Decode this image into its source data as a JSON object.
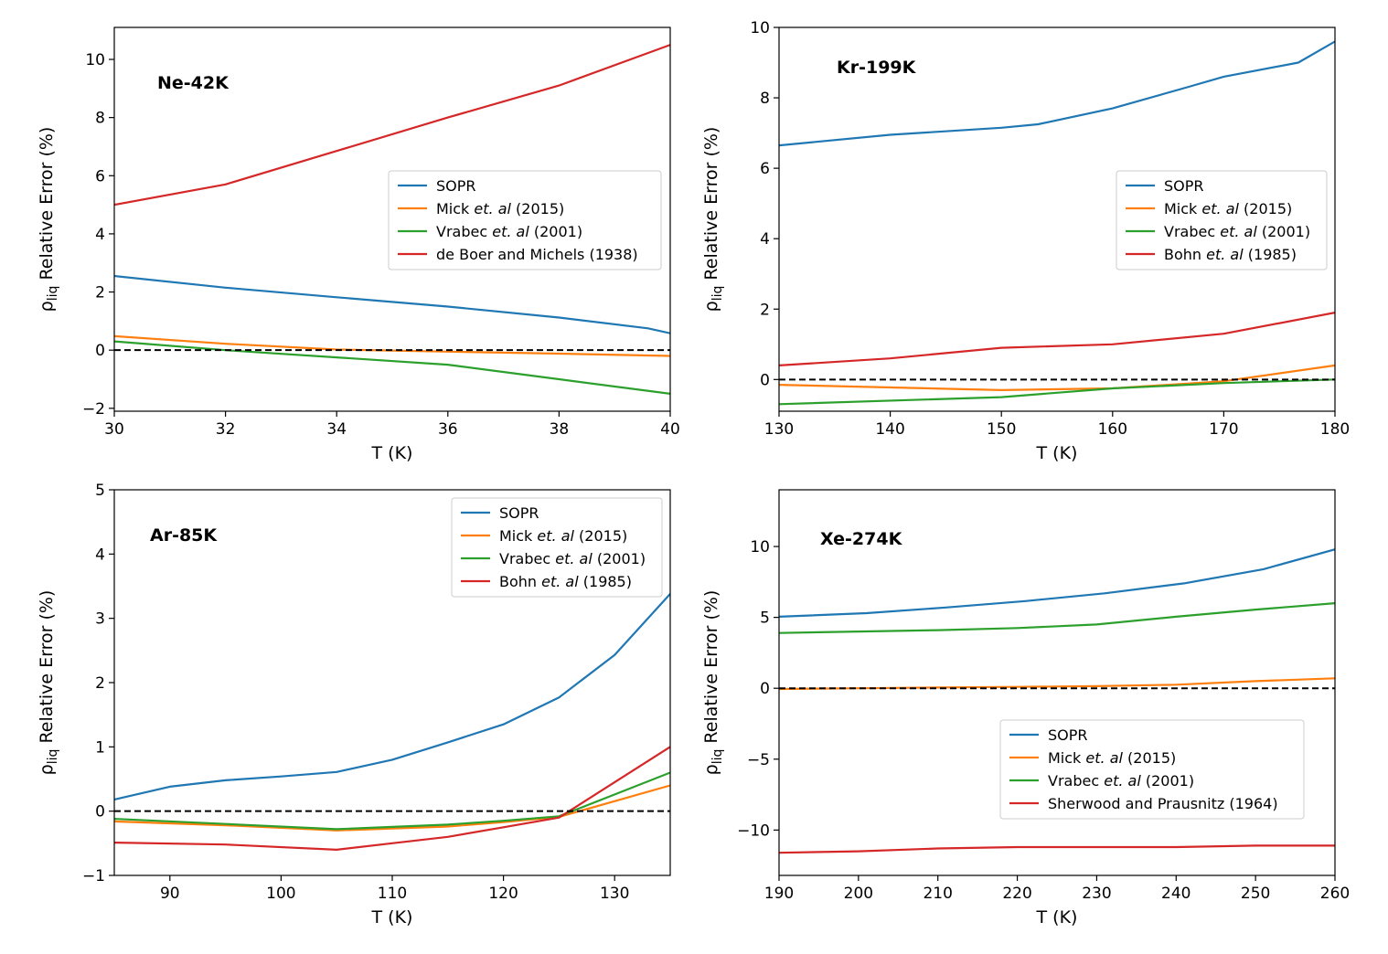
{
  "chart_data": [
    {
      "type": "line",
      "title": "Ne-42K",
      "xlabel": "T (K)",
      "ylabel": "ρ",
      "ylabel_sub": "liq",
      "ylabel_rest": " Relative Error (%)",
      "xlim": [
        30,
        40
      ],
      "ylim": [
        -2.1,
        11.1
      ],
      "xticks": [
        30,
        32,
        34,
        36,
        38,
        40
      ],
      "yticks": [
        -2,
        0,
        2,
        4,
        6,
        8,
        10
      ],
      "legend_loc": "center-right",
      "series": [
        {
          "name": "SOPR",
          "pre": "SOPR",
          "it": "",
          "post": "",
          "color": "#1f77b4",
          "x": [
            30,
            32,
            34,
            36,
            38,
            39.6,
            40
          ],
          "y": [
            2.55,
            2.15,
            1.82,
            1.5,
            1.12,
            0.75,
            0.58
          ]
        },
        {
          "name": "Mick et. al (2015)",
          "pre": "Mick ",
          "it": "et. al",
          "post": " (2015)",
          "color": "#ff7f0e",
          "x": [
            30,
            32,
            34,
            36,
            38,
            40
          ],
          "y": [
            0.48,
            0.22,
            0.02,
            -0.05,
            -0.12,
            -0.2
          ]
        },
        {
          "name": "Vrabec et. al (2001)",
          "pre": "Vrabec ",
          "it": "et. al",
          "post": " (2001)",
          "color": "#2ca02c",
          "x": [
            30,
            32,
            34,
            36,
            38,
            40
          ],
          "y": [
            0.3,
            0.0,
            -0.25,
            -0.5,
            -1.0,
            -1.5
          ]
        },
        {
          "name": "de Boer and Michels (1938)",
          "pre": "de Boer and Michels (1938)",
          "it": "",
          "post": "",
          "color": "#d62728",
          "x": [
            30,
            32,
            34,
            36,
            38,
            40
          ],
          "y": [
            5.0,
            5.7,
            6.85,
            8.0,
            9.1,
            10.5
          ]
        }
      ]
    },
    {
      "type": "line",
      "title": "Kr-199K",
      "xlabel": "T (K)",
      "ylabel": "ρ",
      "ylabel_sub": "liq",
      "ylabel_rest": " Relative Error (%)",
      "xlim": [
        130,
        180
      ],
      "ylim": [
        -0.9,
        10.0
      ],
      "xticks": [
        130,
        140,
        150,
        160,
        170,
        180
      ],
      "yticks": [
        0,
        2,
        4,
        6,
        8,
        10
      ],
      "legend_loc": "center-right",
      "series": [
        {
          "name": "SOPR",
          "pre": "SOPR",
          "it": "",
          "post": "",
          "color": "#1f77b4",
          "x": [
            130,
            140,
            150,
            153.3,
            160,
            166.7,
            170,
            176.7,
            180
          ],
          "y": [
            6.65,
            6.95,
            7.15,
            7.25,
            7.7,
            8.3,
            8.6,
            9.0,
            9.6
          ]
        },
        {
          "name": "Mick et. al (2015)",
          "pre": "Mick ",
          "it": "et. al",
          "post": " (2015)",
          "color": "#ff7f0e",
          "x": [
            130,
            150,
            160,
            170,
            180
          ],
          "y": [
            -0.15,
            -0.3,
            -0.25,
            -0.05,
            0.4
          ]
        },
        {
          "name": "Vrabec et. al (2001)",
          "pre": "Vrabec ",
          "it": "et. al",
          "post": " (2001)",
          "color": "#2ca02c",
          "x": [
            130,
            150,
            160,
            170,
            180
          ],
          "y": [
            -0.7,
            -0.5,
            -0.25,
            -0.1,
            0.0
          ]
        },
        {
          "name": "Bohn et. al (1985)",
          "pre": "Bohn ",
          "it": "et. al",
          "post": " (1985)",
          "color": "#d62728",
          "x": [
            130,
            140,
            150,
            160,
            170,
            180
          ],
          "y": [
            0.4,
            0.6,
            0.9,
            1.0,
            1.3,
            1.9
          ]
        }
      ]
    },
    {
      "type": "line",
      "title": "Ar-85K",
      "xlabel": "T (K)",
      "ylabel": "ρ",
      "ylabel_sub": "liq",
      "ylabel_rest": " Relative Error (%)",
      "xlim": [
        85,
        135
      ],
      "ylim": [
        -1.0,
        5.0
      ],
      "xticks": [
        90,
        100,
        110,
        120,
        130
      ],
      "yticks": [
        -1,
        0,
        1,
        2,
        3,
        4,
        5
      ],
      "legend_loc": "top-right",
      "series": [
        {
          "name": "SOPR",
          "pre": "SOPR",
          "it": "",
          "post": "",
          "color": "#1f77b4",
          "x": [
            85,
            90,
            95,
            100,
            105,
            110,
            115,
            120,
            125,
            130,
            135
          ],
          "y": [
            0.18,
            0.38,
            0.48,
            0.54,
            0.61,
            0.8,
            1.07,
            1.35,
            1.77,
            2.43,
            3.38
          ]
        },
        {
          "name": "Mick et. al (2015)",
          "pre": "Mick ",
          "it": "et. al",
          "post": " (2015)",
          "color": "#ff7f0e",
          "x": [
            85,
            95,
            105,
            115,
            120,
            125,
            135
          ],
          "y": [
            -0.16,
            -0.22,
            -0.3,
            -0.24,
            -0.17,
            -0.09,
            0.4
          ]
        },
        {
          "name": "Vrabec et. al (2001)",
          "pre": "Vrabec ",
          "it": "et. al",
          "post": " (2001)",
          "color": "#2ca02c",
          "x": [
            85,
            95,
            105,
            115,
            120,
            125,
            135
          ],
          "y": [
            -0.12,
            -0.2,
            -0.28,
            -0.21,
            -0.15,
            -0.08,
            0.6
          ]
        },
        {
          "name": "Bohn et. al (1985)",
          "pre": "Bohn ",
          "it": "et. al",
          "post": " (1985)",
          "color": "#d62728",
          "x": [
            85,
            95,
            105,
            110,
            115,
            120,
            125,
            135
          ],
          "y": [
            -0.49,
            -0.52,
            -0.6,
            -0.5,
            -0.4,
            -0.25,
            -0.1,
            1.0
          ]
        }
      ]
    },
    {
      "type": "line",
      "title": "Xe-274K",
      "xlabel": "T (K)",
      "ylabel": "ρ",
      "ylabel_sub": "liq",
      "ylabel_rest": " Relative Error (%)",
      "xlim": [
        190,
        260
      ],
      "ylim": [
        -13.2,
        14.0
      ],
      "xticks": [
        190,
        200,
        210,
        220,
        230,
        240,
        250,
        260
      ],
      "yticks": [
        -10,
        -5,
        0,
        5,
        10
      ],
      "legend_loc": "lower-right",
      "series": [
        {
          "name": "SOPR",
          "pre": "SOPR",
          "it": "",
          "post": "",
          "color": "#1f77b4",
          "x": [
            190,
            201,
            211,
            221,
            231,
            241,
            251,
            260
          ],
          "y": [
            5.05,
            5.3,
            5.7,
            6.15,
            6.7,
            7.4,
            8.4,
            9.8
          ]
        },
        {
          "name": "Mick et. al (2015)",
          "pre": "Mick ",
          "it": "et. al",
          "post": " (2015)",
          "color": "#ff7f0e",
          "x": [
            190,
            200,
            210,
            220,
            230,
            240,
            250,
            260
          ],
          "y": [
            -0.05,
            0.0,
            0.05,
            0.1,
            0.15,
            0.25,
            0.5,
            0.7
          ]
        },
        {
          "name": "Vrabec et. al (2001)",
          "pre": "Vrabec ",
          "it": "et. al",
          "post": " (2001)",
          "color": "#2ca02c",
          "x": [
            190,
            200,
            210,
            220,
            230,
            240,
            250,
            260
          ],
          "y": [
            3.9,
            4.0,
            4.1,
            4.25,
            4.5,
            5.05,
            5.55,
            6.0
          ]
        },
        {
          "name": "Sherwood and Prausnitz (1964)",
          "pre": "Sherwood and Prausnitz (1964)",
          "it": "",
          "post": "",
          "color": "#d62728",
          "x": [
            190,
            200,
            210,
            220,
            230,
            240,
            250,
            260
          ],
          "y": [
            -11.6,
            -11.5,
            -11.3,
            -11.2,
            -11.2,
            -11.2,
            -11.1,
            -11.1
          ]
        }
      ]
    }
  ]
}
